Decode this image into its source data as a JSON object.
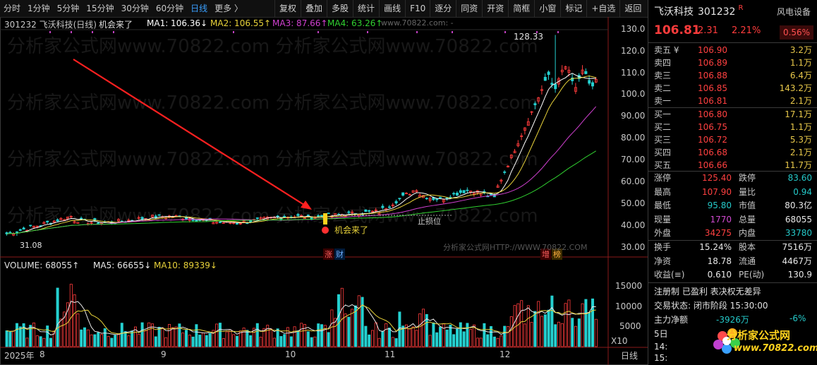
{
  "toolbar": {
    "periods": [
      "分时",
      "1分钟",
      "5分钟",
      "15分钟",
      "30分钟",
      "60分钟",
      "日线",
      "更多 〉"
    ],
    "active_period": "日线",
    "tools": [
      "复权",
      "叠加",
      "多股",
      "统计",
      "画线",
      "F10",
      "逐分",
      "同资",
      "开资",
      "简框",
      "小窗",
      "标记",
      "+自选",
      "返回"
    ]
  },
  "chart": {
    "legend": {
      "title": "301232  飞沃科技(日线)",
      "signal": "机会来了",
      "ma1": "MA1: 106.36↓",
      "ma2": "MA2: 106.55↑",
      "ma3": "MA3: 87.66↑",
      "ma4": "MA4: 63.26↑",
      "watermark_top": "www.70822.com: -"
    },
    "price_axis": [
      "130.0",
      "120.0",
      "110.0",
      "100.0",
      "90.00",
      "80.00",
      "70.00",
      "60.00",
      "50.00",
      "40.00",
      "30.00"
    ],
    "high_label": "128.33",
    "low_label": "31.08",
    "annotation_signal": "机会来了",
    "annotation_stoploss": "止损位",
    "tag_left": [
      "涨",
      "财"
    ],
    "tag_right": [
      "增",
      "榜"
    ],
    "watermark_url": "分析家公式网HTTP://WWW.70822.COM",
    "volume_legend": {
      "vol": "VOLUME: 68055↑",
      "ma5": "MA5: 66655↓",
      "ma10": "MA10: 89339↓"
    },
    "volume_axis": [
      "15000",
      "10000",
      "5000",
      "X10"
    ],
    "date_axis": [
      "2025年",
      "8",
      "9",
      "10",
      "11",
      "12"
    ],
    "bottom_right_label": "日线",
    "colors": {
      "up": "#ff3c3c",
      "down": "#25d0d0",
      "ma1": "#ffffff",
      "ma2": "#e8d23a",
      "ma3": "#d040d0",
      "ma4": "#30d030"
    }
  },
  "chart_data": {
    "type": "candlestick",
    "price_range": [
      27,
      135
    ],
    "volume_range": [
      0,
      17000
    ],
    "notable_points": {
      "signal_price": 38.5,
      "peak_price": 128.33,
      "low_price": 31.08,
      "last_close": 106.81
    }
  },
  "panel": {
    "name": "飞沃科技",
    "code": "301232",
    "r_tag": "R",
    "sector": "风电设备",
    "sector_pct": "0.56%",
    "price": "106.81",
    "change": "2.31",
    "change_pct": "2.21%",
    "asks": [
      {
        "label": "卖五 ¥",
        "price": "106.90",
        "vol": "3.2万"
      },
      {
        "label": "卖四",
        "price": "106.89",
        "vol": "1.1万"
      },
      {
        "label": "卖三",
        "price": "106.88",
        "vol": "6.4万"
      },
      {
        "label": "卖二",
        "price": "106.85",
        "vol": "143.2万"
      },
      {
        "label": "卖一",
        "price": "106.81",
        "vol": "2.1万"
      }
    ],
    "bids": [
      {
        "label": "买一",
        "price": "106.80",
        "vol": "17.1万"
      },
      {
        "label": "买二",
        "price": "106.75",
        "vol": "1.1万"
      },
      {
        "label": "买三",
        "price": "106.72",
        "vol": "5.3万"
      },
      {
        "label": "买四",
        "price": "106.68",
        "vol": "2.1万"
      },
      {
        "label": "买五",
        "price": "106.66",
        "vol": "11.7万"
      }
    ],
    "stats1": [
      {
        "l1": "涨停",
        "v1": "125.40",
        "c1": "red",
        "l2": "跌停",
        "v2": "83.60",
        "c2": "green"
      },
      {
        "l1": "最高",
        "v1": "107.90",
        "c1": "red",
        "l2": "量比",
        "v2": "0.94",
        "c2": "green"
      },
      {
        "l1": "最低",
        "v1": "95.80",
        "c1": "green",
        "l2": "市值",
        "v2": "80.3亿",
        "c2": "white"
      },
      {
        "l1": "现量",
        "v1": "1770",
        "c1": "purple",
        "l2": "总量",
        "v2": "68055",
        "c2": "white"
      },
      {
        "l1": "外盘",
        "v1": "34275",
        "c1": "red",
        "l2": "内盘",
        "v2": "33780",
        "c2": "green"
      }
    ],
    "stats2": [
      {
        "l1": "换手",
        "v1": "15.24%",
        "c1": "white",
        "l2": "股本",
        "v2": "7516万",
        "c2": "white"
      },
      {
        "l1": "净资",
        "v1": "18.78",
        "c1": "white",
        "l2": "流通",
        "v2": "4467万",
        "c2": "white"
      },
      {
        "l1": "收益(≡)",
        "v1": "0.610",
        "c1": "white",
        "l2": "PE(动)",
        "v2": "130.9",
        "c2": "white"
      }
    ],
    "registration": "注册制 已盈利 表决权无差异",
    "trade_status": "交易状态: 闭市阶段 15:30:00",
    "main_flow_label": "主力净额",
    "main_flow_value": "-3926万",
    "main_flow_pct": "-6%",
    "day5": "5日",
    "time1": "14:",
    "time2": "15:",
    "logo_text": "分析家公式网",
    "logo_url": "www.70822.com"
  }
}
